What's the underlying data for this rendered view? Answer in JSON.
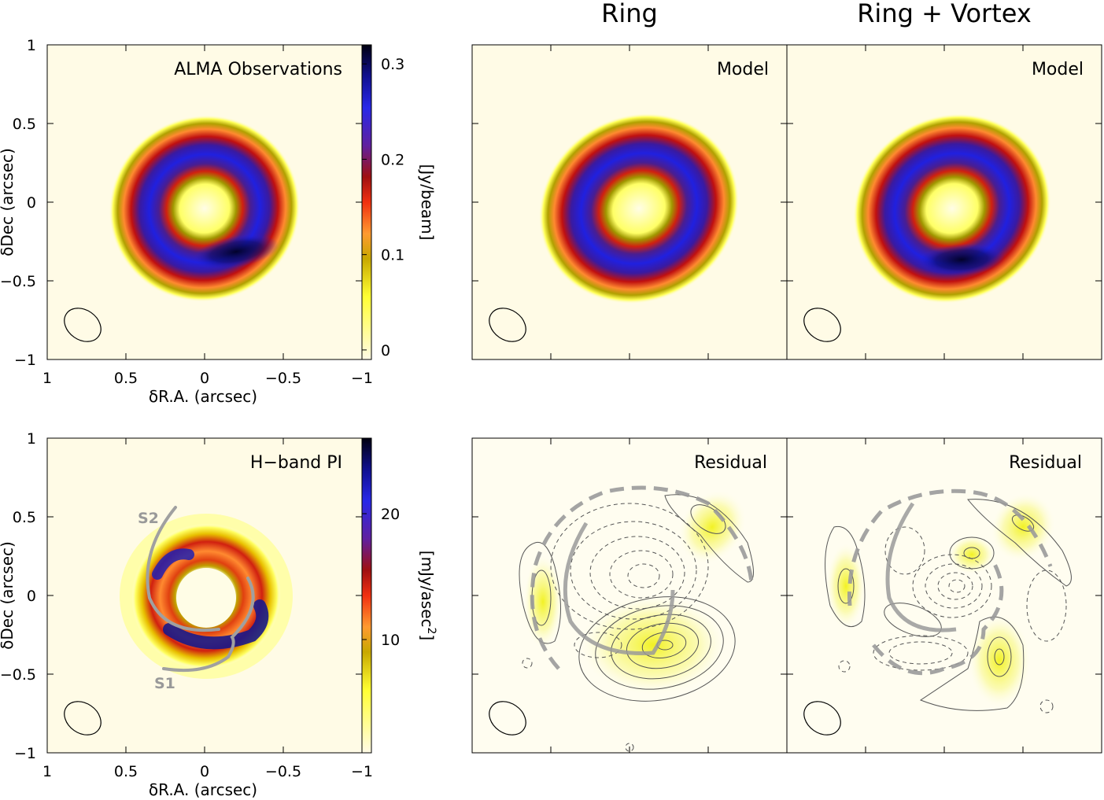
{
  "figure": {
    "column_titles": [
      "Ring",
      "Ring + Vortex"
    ]
  },
  "panels": [
    {
      "id": "alma",
      "title": "ALMA Observations"
    },
    {
      "id": "model_ring",
      "title": "Model"
    },
    {
      "id": "model_vortex",
      "title": "Model"
    },
    {
      "id": "hband",
      "title": "H−band PI",
      "spiral_labels": [
        "S2",
        "S1"
      ]
    },
    {
      "id": "resid_ring",
      "title": "Residual"
    },
    {
      "id": "resid_vortex",
      "title": "Residual"
    }
  ],
  "axes": {
    "xlabel": "δR.A. (arcsec)",
    "ylabel": "δDec (arcsec)",
    "xticks": [
      "1",
      "0.5",
      "0",
      "−0.5",
      "−1"
    ],
    "yticks": [
      "1",
      "0.5",
      "0",
      "−0.5",
      "−1"
    ],
    "xlim": [
      1,
      -1
    ],
    "ylim": [
      -1,
      1
    ]
  },
  "colorbars": [
    {
      "label": "[Jy/beam]",
      "ticks": [
        "0.3",
        "0.2",
        "0.1",
        "0"
      ],
      "range": [
        -0.01,
        0.32
      ]
    },
    {
      "label": "[mJy/asec",
      "label_sup": "2",
      "label_end": "]",
      "ticks": [
        "20",
        "10"
      ],
      "range": [
        1,
        26
      ]
    }
  ],
  "colors": {
    "colormap": [
      "#fffbe6",
      "#ffff00",
      "#e6a000",
      "#ff8020",
      "#d01010",
      "#800000",
      "#5020a0",
      "#2020e0",
      "#000030"
    ],
    "contour": "#555555",
    "spiral": "#9a9a9a"
  },
  "chart_data": [
    {
      "type": "heatmap",
      "panel": "ALMA Observations",
      "units": "Jy/beam",
      "value_range": [
        0,
        0.32
      ],
      "ring": {
        "inner_radius_arcsec": 0.2,
        "peak_radius_arcsec": 0.4,
        "outer_radius_arcsec": 0.6,
        "peak_value": 0.32,
        "peak_location": "south"
      }
    },
    {
      "type": "heatmap",
      "panel": "Ring Model",
      "units": "Jy/beam",
      "ring": {
        "peak_radius_arcsec": 0.4,
        "peak_value": 0.25
      }
    },
    {
      "type": "heatmap",
      "panel": "Ring + Vortex Model",
      "units": "Jy/beam",
      "ring": {
        "peak_radius_arcsec": 0.4,
        "peak_value": 0.32,
        "peak_location": "south"
      }
    },
    {
      "type": "heatmap",
      "panel": "H-band PI",
      "units": "mJy/asec^2",
      "value_range": [
        1,
        26
      ],
      "spirals": [
        "S1",
        "S2"
      ]
    },
    {
      "type": "heatmap",
      "panel": "Ring Residual",
      "contours": true
    },
    {
      "type": "heatmap",
      "panel": "Ring + Vortex Residual",
      "contours": true
    }
  ]
}
